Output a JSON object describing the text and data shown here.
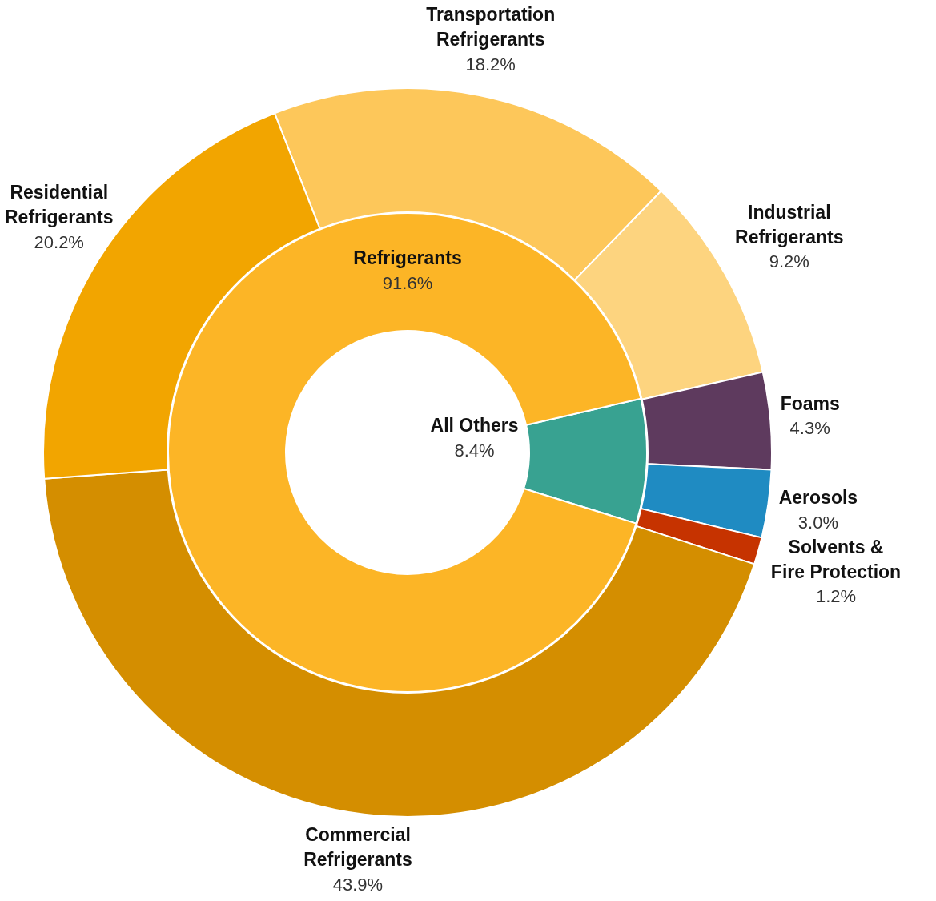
{
  "chart_data": [
    {
      "type": "donut",
      "categories": [
        "Transportation Refrigerants",
        "Industrial Refrigerants",
        "Foams",
        "Aerosols",
        "Solvents & Fire Protection",
        "Commercial Refrigerants",
        "Residential Refrigerants"
      ],
      "values": [
        18.2,
        9.2,
        4.3,
        3.0,
        1.2,
        43.9,
        20.2
      ],
      "value_labels": [
        "18.2%",
        "9.2%",
        "4.3%",
        "3.0%",
        "1.2%",
        "43.9%",
        "20.2%"
      ],
      "colors": [
        "#fdc75a",
        "#fdd47f",
        "#5e3a5e",
        "#1f8bc2",
        "#c63300",
        "#d48e00",
        "#f2a500"
      ]
    },
    {
      "type": "donut",
      "categories": [
        "All Others",
        "Refrigerants"
      ],
      "values": [
        8.4,
        91.6
      ],
      "value_labels": [
        "8.4%",
        "91.6%"
      ],
      "colors": [
        "#38a291",
        "#fcb526"
      ]
    }
  ]
}
